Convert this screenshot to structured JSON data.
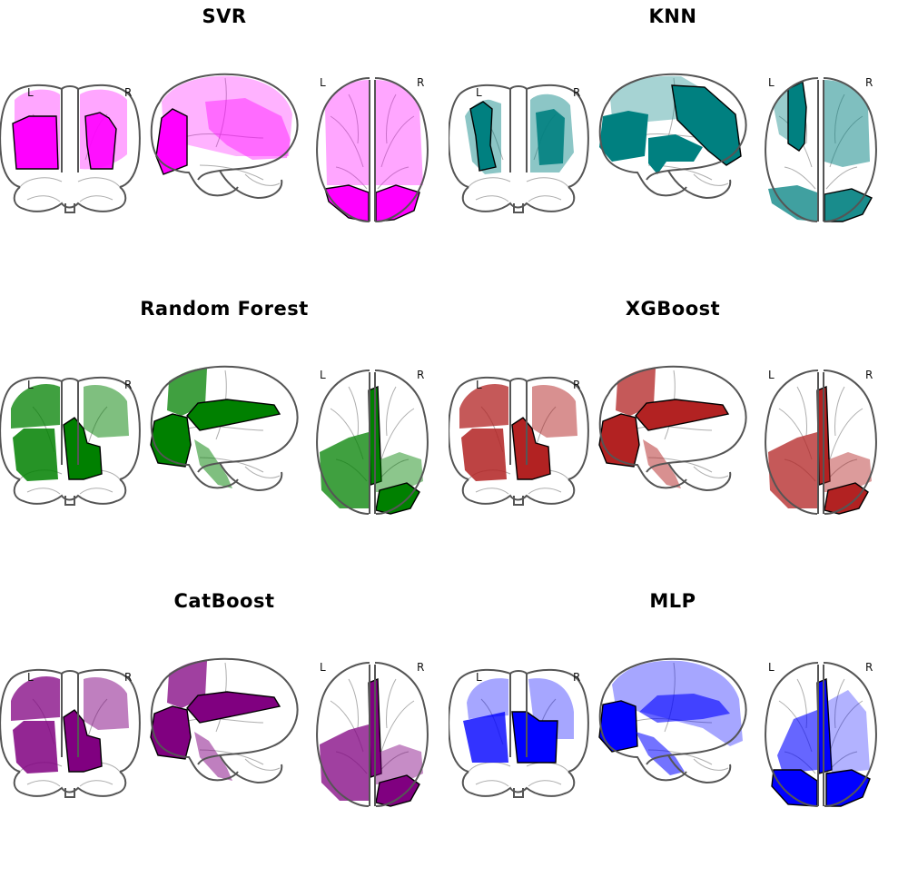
{
  "panels": [
    {
      "title": "SVR",
      "color": "#ff00ff",
      "style": "diffuse"
    },
    {
      "title": "KNN",
      "color": "#008080",
      "style": "teal"
    },
    {
      "title": "Random Forest",
      "color": "#008000",
      "style": "left"
    },
    {
      "title": "XGBoost",
      "color": "#b22222",
      "style": "left"
    },
    {
      "title": "CatBoost",
      "color": "#800080",
      "style": "left"
    },
    {
      "title": "MLP",
      "color": "#0000ff",
      "style": "wide"
    }
  ],
  "hemisphere_labels": {
    "left": "L",
    "right": "R"
  }
}
